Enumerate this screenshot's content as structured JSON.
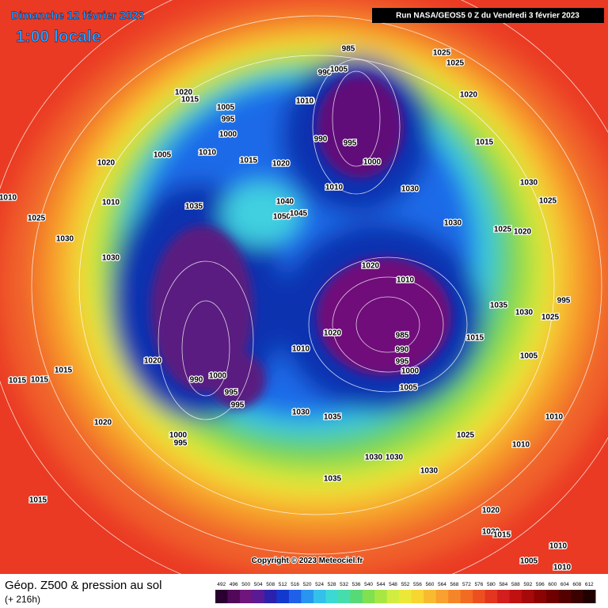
{
  "header": {
    "date": "Dimanche 12 février 2023",
    "time": "1:00 locale",
    "run": "Run NASA/GEOS5 0 Z du Vendredi 3 février 2023"
  },
  "copyright": "Copyright © 2023 Meteociel.fr",
  "footer": {
    "title": "Géop. Z500 & pression au sol",
    "lead": "(+ 216h)"
  },
  "colorbar": {
    "values": [
      492,
      496,
      500,
      504,
      508,
      512,
      516,
      520,
      524,
      528,
      532,
      536,
      540,
      544,
      548,
      552,
      556,
      560,
      564,
      568,
      572,
      576,
      580,
      584,
      588,
      592,
      596,
      600,
      604,
      608,
      612
    ]
  },
  "pressure_labels": [
    "985",
    "990",
    "1005",
    "1010",
    "990",
    "995",
    "1000",
    "1010",
    "1025",
    "1025",
    "1020",
    "1015",
    "1020",
    "1005",
    "995",
    "1000",
    "1005",
    "1010",
    "1020",
    "1015",
    "1015",
    "1010",
    "1035",
    "1040",
    "1050",
    "1045",
    "1020",
    "1030",
    "1030",
    "1010",
    "1020",
    "1010",
    "985",
    "990",
    "995",
    "1000",
    "1005",
    "1020",
    "1030",
    "1035",
    "1035",
    "1030",
    "1030",
    "1030",
    "1015",
    "1025",
    "1030",
    "1035",
    "1015",
    "1010",
    "1000",
    "995",
    "990",
    "995",
    "1000",
    "995",
    "1020",
    "1015",
    "1020",
    "1015",
    "1010",
    "1010",
    "1005",
    "1020",
    "1020",
    "1030",
    "1025",
    "1020",
    "1015",
    "1010",
    "1010",
    "1005",
    "995",
    "1025",
    "1015",
    "1030",
    "1030",
    "1025",
    "1010",
    "1025"
  ]
}
